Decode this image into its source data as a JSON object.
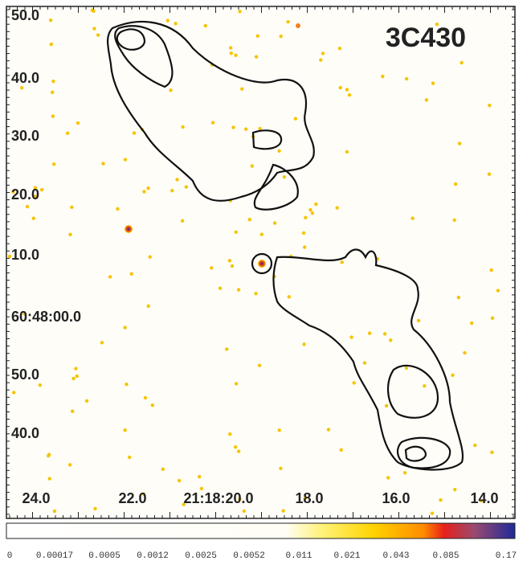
{
  "image": {
    "title": "3C430",
    "y_labels": [
      "50.0",
      "40.0",
      "30.0",
      "20.0",
      "10.0",
      "60:48:00.0",
      "50.0",
      "40.0"
    ],
    "x_labels": [
      "24.0",
      "22.0",
      "21:18:20.0",
      "18.0",
      "16.0",
      "14.0"
    ]
  },
  "colorbar": {
    "labels": [
      "0",
      "0.00017",
      "0.0005",
      "0.0012",
      "0.0025",
      "0.0052",
      "0.011",
      "0.021",
      "0.043",
      "0.085",
      "0.17"
    ]
  }
}
